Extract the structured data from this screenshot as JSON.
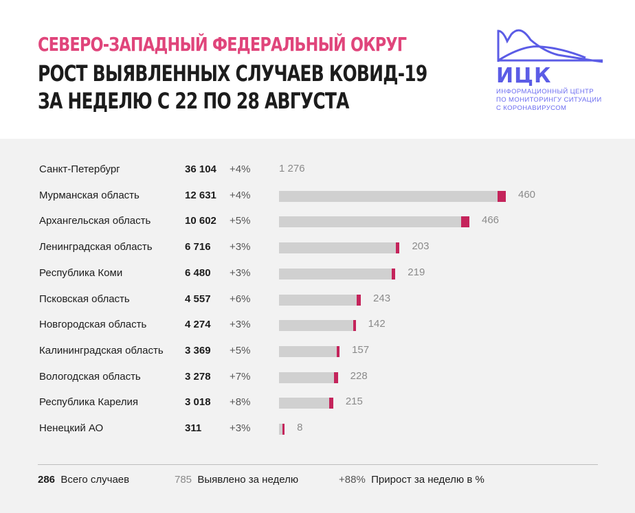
{
  "header": {
    "line1": "Северо-Западный федеральный округ",
    "line2": "Рост выявленных случаев ковид-19",
    "line3": "за неделю с 22 по 28 августа"
  },
  "logo": {
    "abbr": "ИЦК",
    "text_lines": [
      "Информационный центр",
      "по мониторингу ситуации",
      "с коронавирусом"
    ],
    "color": "#5b5ce6"
  },
  "colors": {
    "bar_gray": "#d0d0d0",
    "bar_red": "#c4245b",
    "accent": "#e0457b"
  },
  "chart_data": {
    "type": "bar",
    "orientation": "horizontal",
    "categories": [
      "Санкт-Петербург",
      "Мурманская область",
      "Архангельская область",
      "Ленинградская область",
      "Республика Коми",
      "Псковская область",
      "Новгородская область",
      "Калининградская область",
      "Вологодская область",
      "Республика Карелия",
      "Ненецкий АО"
    ],
    "series": [
      {
        "name": "Всего случаев",
        "values": [
          36104,
          12631,
          10602,
          6716,
          6480,
          4557,
          4274,
          3369,
          3278,
          3018,
          311
        ]
      },
      {
        "name": "Выявлено за неделю",
        "values": [
          1276,
          460,
          466,
          203,
          219,
          243,
          142,
          157,
          228,
          215,
          8
        ]
      },
      {
        "name": "Прирост за неделю в %",
        "values": [
          4,
          4,
          5,
          3,
          3,
          6,
          3,
          5,
          7,
          8,
          3
        ]
      }
    ],
    "total_labels": [
      "36 104",
      "12 631",
      "10 602",
      "6 716",
      "6 480",
      "4 557",
      "4 274",
      "3 369",
      "3 278",
      "3 018",
      "311"
    ],
    "week_labels": [
      "1 276",
      "460",
      "466",
      "203",
      "219",
      "243",
      "142",
      "157",
      "228",
      "215",
      "8"
    ],
    "pct_labels": [
      "+4%",
      "+4%",
      "+5%",
      "+3%",
      "+3%",
      "+6%",
      "+3%",
      "+5%",
      "+7%",
      "+8%",
      "+3%"
    ]
  },
  "legend": {
    "total_num": "286",
    "total_label": "Всего случаев",
    "week_num": "785",
    "week_label": "Выявлено за неделю",
    "pct_num": "+88%",
    "pct_label": "Прирост за неделю в %"
  }
}
